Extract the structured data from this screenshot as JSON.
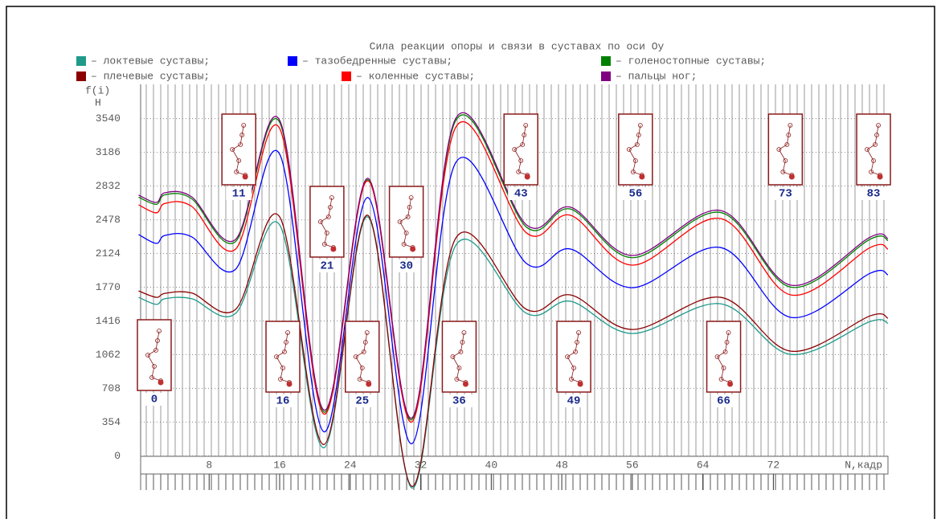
{
  "chart_data": {
    "type": "line",
    "title": "Сила реакции опоры и связи в суставах по оси Оу",
    "y_label": "f(i)",
    "y_unit": "Н",
    "x_label": "N,кадр",
    "x": [
      0,
      2,
      3,
      6,
      11,
      16,
      21,
      26,
      31,
      36,
      44,
      49,
      56,
      66,
      74,
      83,
      85
    ],
    "series": [
      {
        "name": "– локтевые суставы;",
        "color": "#1f9a8a",
        "values": [
          1664,
          1590,
          1650,
          1650,
          1495,
          2424,
          84,
          2508,
          -338,
          2213,
          1495,
          1622,
          1284,
          1596,
          1064,
          1410,
          1390
        ]
      },
      {
        "name": "– тазобедренные суставы;",
        "color": "#0000ff",
        "values": [
          2323,
          2230,
          2314,
          2300,
          1959,
          3167,
          253,
          2711,
          127,
          3083,
          2019,
          2171,
          1765,
          2187,
          1453,
          1917,
          1900
        ]
      },
      {
        "name": "– голеностопные суставы;",
        "color": "#008000",
        "values": [
          2715,
          2640,
          2740,
          2700,
          2250,
          3500,
          460,
          2900,
          380,
          3525,
          2400,
          2590,
          2080,
          2555,
          1770,
          2275,
          2260
        ]
      },
      {
        "name": "– плечевые суставы;",
        "color": "#8b0000",
        "values": [
          1731,
          1664,
          1706,
          1710,
          1537,
          2508,
          118,
          2525,
          -321,
          2289,
          1537,
          1689,
          1326,
          1664,
          1098,
          1470,
          1444
        ]
      },
      {
        "name": "– коленные суставы;",
        "color": "#ff0000",
        "values": [
          2635,
          2551,
          2650,
          2620,
          2170,
          3437,
          439,
          2888,
          355,
          3454,
          2340,
          2525,
          2002,
          2491,
          1689,
          2187,
          2170
        ]
      },
      {
        "name": "– пальцы ног;",
        "color": "#800080",
        "values": [
          2737,
          2660,
          2762,
          2720,
          2272,
          3522,
          481,
          2914,
          397,
          3547,
          2424,
          2610,
          2103,
          2576,
          1791,
          2297,
          2280
        ]
      }
    ],
    "xlim": [
      0,
      85
    ],
    "ylim": [
      -360,
      3900
    ],
    "xticks": [
      8,
      16,
      24,
      32,
      40,
      48,
      56,
      64,
      72
    ],
    "yticks": [
      0,
      354,
      708,
      1062,
      1416,
      1770,
      2124,
      2478,
      2832,
      3186,
      3540
    ],
    "frames": [
      0,
      11,
      16,
      21,
      25,
      30,
      36,
      43,
      49,
      56,
      66,
      73,
      83
    ]
  }
}
